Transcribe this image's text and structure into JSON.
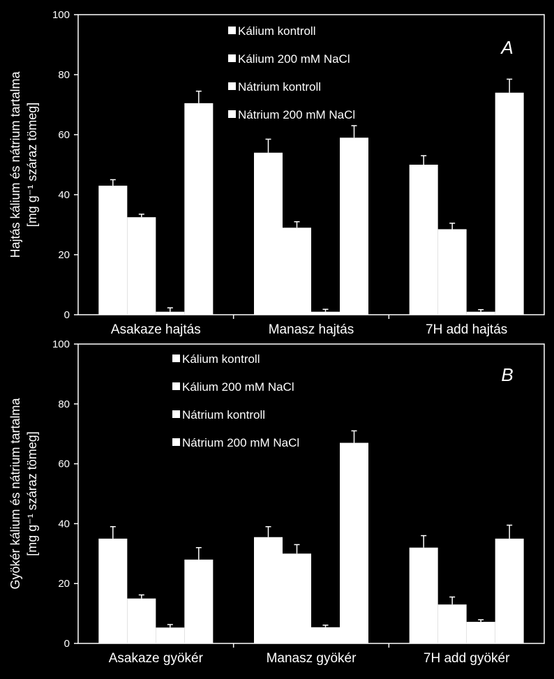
{
  "chart_data": [
    {
      "type": "bar",
      "panel_label": "A",
      "ylabel": [
        "Hajtás kálium és nátrium tartalma",
        "[mg g⁻¹ száraz tömeg]"
      ],
      "ylim": [
        0,
        100
      ],
      "yticks": [
        0,
        20,
        40,
        60,
        80,
        100
      ],
      "categories": [
        "Asakaze  hajtás",
        "Manasz  hajtás",
        "7H  add  hajtás"
      ],
      "legend": [
        "Kálium kontroll",
        "Kálium 200 mM NaCl",
        "Nátrium kontroll",
        "Nátrium 200 mM NaCl"
      ],
      "series": [
        {
          "name": "Kálium kontroll",
          "values": [
            43,
            54,
            50
          ],
          "errors": [
            2,
            4.5,
            3
          ]
        },
        {
          "name": "Kálium 200 mM NaCl",
          "values": [
            32.5,
            29,
            28.5
          ],
          "errors": [
            1,
            2,
            2
          ]
        },
        {
          "name": "Nátrium kontroll",
          "values": [
            1,
            1,
            1
          ],
          "errors": [
            1.3,
            0.8,
            0.7
          ]
        },
        {
          "name": "Nátrium 200 mM NaCl",
          "values": [
            70.5,
            59,
            74
          ],
          "errors": [
            4,
            4,
            4.5
          ]
        }
      ],
      "colors": {
        "background": "#000000",
        "bar": "#ffffff",
        "axis": "#ffffff"
      }
    },
    {
      "type": "bar",
      "panel_label": "B",
      "ylabel": [
        "Gyökér kálium és nátrium tartalma",
        "[mg g⁻¹ száraz tömeg]"
      ],
      "ylim": [
        0,
        100
      ],
      "yticks": [
        0,
        20,
        40,
        60,
        80,
        100
      ],
      "categories": [
        "Asakaze  gyökér",
        "Manasz  gyökér",
        "7H  add  gyökér"
      ],
      "legend": [
        "Kálium kontroll",
        "Kálium 200 mM NaCl",
        "Nátrium kontroll",
        "Nátrium 200 mM NaCl"
      ],
      "series": [
        {
          "name": "Kálium kontroll",
          "values": [
            35,
            35.5,
            32
          ],
          "errors": [
            4,
            3.5,
            4
          ]
        },
        {
          "name": "Kálium 200 mM NaCl",
          "values": [
            15,
            30,
            13
          ],
          "errors": [
            1.2,
            3,
            2.5
          ]
        },
        {
          "name": "Nátrium kontroll",
          "values": [
            5.3,
            5.4,
            7.2
          ],
          "errors": [
            1,
            0.7,
            0.7
          ]
        },
        {
          "name": "Nátrium 200 mM NaCl",
          "values": [
            28,
            67,
            35
          ],
          "errors": [
            4,
            4,
            4.5
          ]
        }
      ],
      "colors": {
        "background": "#000000",
        "bar": "#ffffff",
        "axis": "#ffffff"
      }
    }
  ]
}
